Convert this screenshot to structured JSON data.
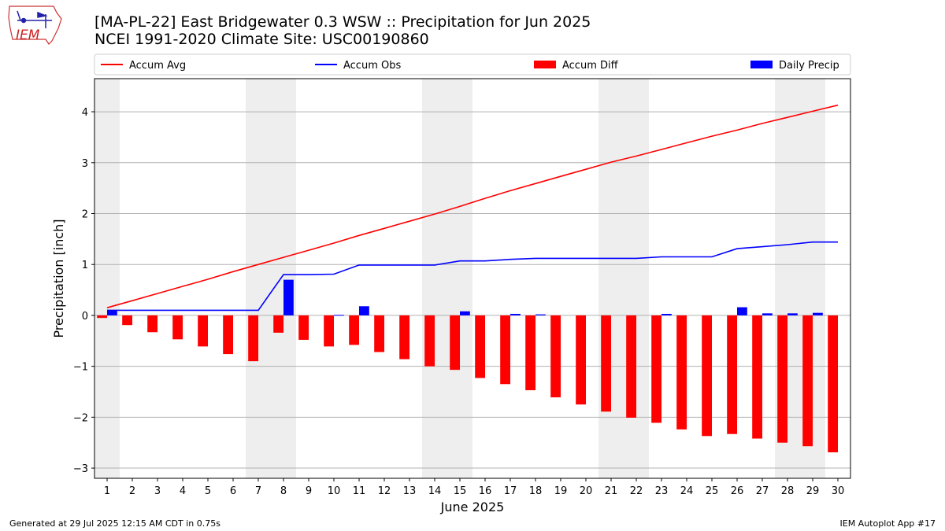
{
  "header": {
    "logo_text": "IEM",
    "title_line1": "[MA-PL-22] East Bridgewater 0.3 WSW :: Precipitation for Jun 2025",
    "title_line2": "NCEI 1991-2020 Climate Site: USC00190860"
  },
  "footer": {
    "generated": "Generated at 29 Jul 2025 12:15 AM CDT in 0.75s",
    "app": "IEM Autoplot App #17"
  },
  "colors": {
    "accum_avg": "#ff0000",
    "accum_obs": "#0000ff",
    "accum_diff": "#ff0000",
    "daily_precip": "#0000ff",
    "weekend_shade": "#eeeeee",
    "grid": "#b0b0b0"
  },
  "chart_data": {
    "type": "bar",
    "xlabel": "June 2025",
    "ylabel": "Precipitation [inch]",
    "ylim": [
      -3.2,
      4.65
    ],
    "xlim": [
      0.5,
      30.5
    ],
    "yticks": [
      -3,
      -2,
      -1,
      0,
      1,
      2,
      3,
      4
    ],
    "ytick_labels": [
      "−3",
      "−2",
      "−1",
      "0",
      "1",
      "2",
      "3",
      "4"
    ],
    "x": [
      1,
      2,
      3,
      4,
      5,
      6,
      7,
      8,
      9,
      10,
      11,
      12,
      13,
      14,
      15,
      16,
      17,
      18,
      19,
      20,
      21,
      22,
      23,
      24,
      25,
      26,
      27,
      28,
      29,
      30
    ],
    "xtick_labels": [
      "1",
      "2",
      "3",
      "4",
      "5",
      "6",
      "7",
      "8",
      "9",
      "10",
      "11",
      "12",
      "13",
      "14",
      "15",
      "16",
      "17",
      "18",
      "19",
      "20",
      "21",
      "22",
      "23",
      "24",
      "25",
      "26",
      "27",
      "28",
      "29",
      "30"
    ],
    "weekend_days": [
      1,
      7,
      8,
      14,
      15,
      21,
      22,
      28,
      29
    ],
    "grid": "horizontal",
    "legend_position": "top",
    "series": [
      {
        "name": "Accum Avg",
        "type": "line",
        "color": "#ff0000",
        "values": [
          0.15,
          0.29,
          0.43,
          0.57,
          0.71,
          0.86,
          1.0,
          1.14,
          1.28,
          1.42,
          1.57,
          1.71,
          1.85,
          1.99,
          2.14,
          2.3,
          2.45,
          2.59,
          2.73,
          2.87,
          3.01,
          3.13,
          3.26,
          3.39,
          3.52,
          3.64,
          3.77,
          3.89,
          4.01,
          4.13
        ]
      },
      {
        "name": "Accum Obs",
        "type": "line",
        "color": "#0000ff",
        "values": [
          0.1,
          0.1,
          0.1,
          0.1,
          0.1,
          0.1,
          0.1,
          0.8,
          0.8,
          0.81,
          0.99,
          0.99,
          0.99,
          0.99,
          1.07,
          1.07,
          1.1,
          1.12,
          1.12,
          1.12,
          1.12,
          1.12,
          1.15,
          1.15,
          1.15,
          1.31,
          1.35,
          1.39,
          1.44,
          1.44
        ]
      },
      {
        "name": "Accum Diff",
        "type": "bar",
        "color": "#ff0000",
        "values": [
          -0.05,
          -0.19,
          -0.33,
          -0.47,
          -0.61,
          -0.76,
          -0.9,
          -0.34,
          -0.48,
          -0.61,
          -0.58,
          -0.72,
          -0.86,
          -1.0,
          -1.07,
          -1.23,
          -1.35,
          -1.47,
          -1.61,
          -1.75,
          -1.89,
          -2.01,
          -2.11,
          -2.24,
          -2.37,
          -2.33,
          -2.42,
          -2.5,
          -2.57,
          -2.69
        ]
      },
      {
        "name": "Daily Precip",
        "type": "bar",
        "color": "#0000ff",
        "values": [
          0.1,
          0.0,
          0.0,
          0.0,
          0.0,
          0.0,
          0.0,
          0.7,
          0.0,
          0.01,
          0.18,
          0.0,
          0.0,
          0.0,
          0.08,
          0.0,
          0.03,
          0.02,
          0.0,
          0.0,
          0.0,
          0.0,
          0.03,
          0.0,
          0.0,
          0.16,
          0.04,
          0.04,
          0.05,
          0.0
        ]
      }
    ]
  }
}
